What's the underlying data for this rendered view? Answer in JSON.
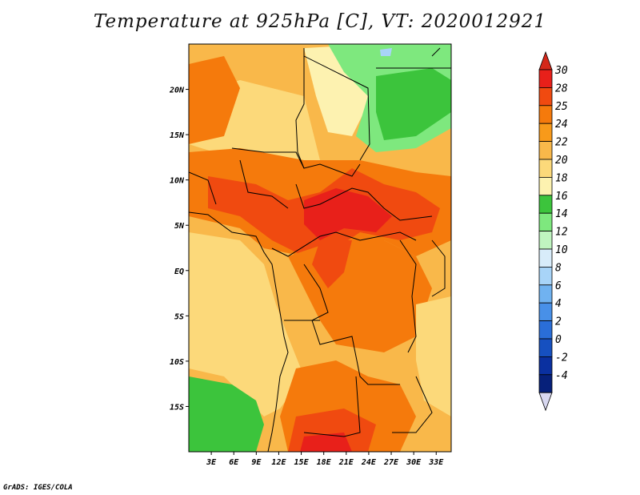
{
  "title": "Temperature at 925hPa [C], VT: 2020012921",
  "credit": "GrADS: IGES/COLA",
  "map": {
    "lon_range": [
      0,
      35
    ],
    "lat_range": [
      -20,
      25
    ],
    "x_ticks": [
      "3E",
      "6E",
      "9E",
      "12E",
      "15E",
      "18E",
      "21E",
      "24E",
      "27E",
      "30E",
      "33E"
    ],
    "x_tick_values": [
      3,
      6,
      9,
      12,
      15,
      18,
      21,
      24,
      27,
      30,
      33
    ],
    "y_ticks": [
      "20N",
      "15N",
      "10N",
      "5N",
      "EQ",
      "5S",
      "10S",
      "15S"
    ],
    "y_tick_values": [
      20,
      15,
      10,
      5,
      0,
      -5,
      -10,
      -15
    ]
  },
  "colorbar": {
    "levels": [
      "30",
      "28",
      "25",
      "24",
      "22",
      "20",
      "18",
      "16",
      "14",
      "12",
      "10",
      "8",
      "6",
      "4",
      "2",
      "0",
      "-2",
      "-4"
    ],
    "colors": [
      "#e8201a",
      "#f04a10",
      "#f57a0c",
      "#f89a1a",
      "#f9b84a",
      "#fcd97a",
      "#fdf2b0",
      "#3cc43c",
      "#7ee87e",
      "#c0f5c0",
      "#d8ecfa",
      "#a8d4f8",
      "#70b2f0",
      "#4890e8",
      "#2a6ed8",
      "#1650c0",
      "#0a30a0",
      "#06207a"
    ],
    "top_cap_color": "#d4281a",
    "bottom_cap_color": "#d8d8f0"
  }
}
